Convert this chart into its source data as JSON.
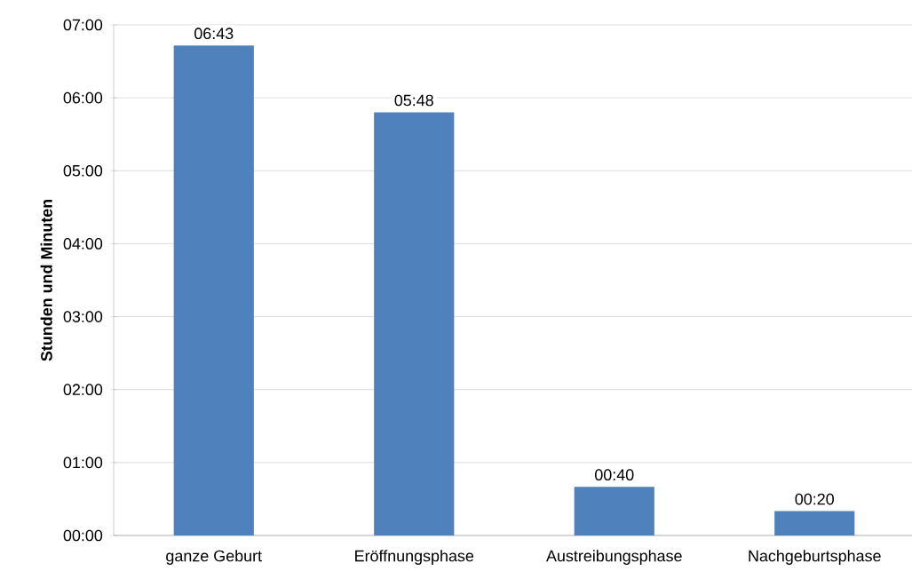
{
  "chart_data": {
    "type": "bar",
    "ylabel": "Stunden und Minuten",
    "categories": [
      "ganze Geburt",
      "Eröffnungsphase",
      "Austreibungsphase",
      "Nachgeburtsphase"
    ],
    "values": [
      6.7167,
      5.8,
      0.6667,
      0.3333
    ],
    "value_labels": [
      "06:43",
      "05:48",
      "00:40",
      "00:20"
    ],
    "color": "#4f81bd",
    "ylim": [
      0,
      7
    ],
    "yticks": [
      {
        "value": 0,
        "label": "00:00"
      },
      {
        "value": 1,
        "label": "01:00"
      },
      {
        "value": 2,
        "label": "02:00"
      },
      {
        "value": 3,
        "label": "03:00"
      },
      {
        "value": 4,
        "label": "04:00"
      },
      {
        "value": 5,
        "label": "05:00"
      },
      {
        "value": 6,
        "label": "06:00"
      },
      {
        "value": 7,
        "label": "07:00"
      }
    ],
    "grid": "y"
  }
}
